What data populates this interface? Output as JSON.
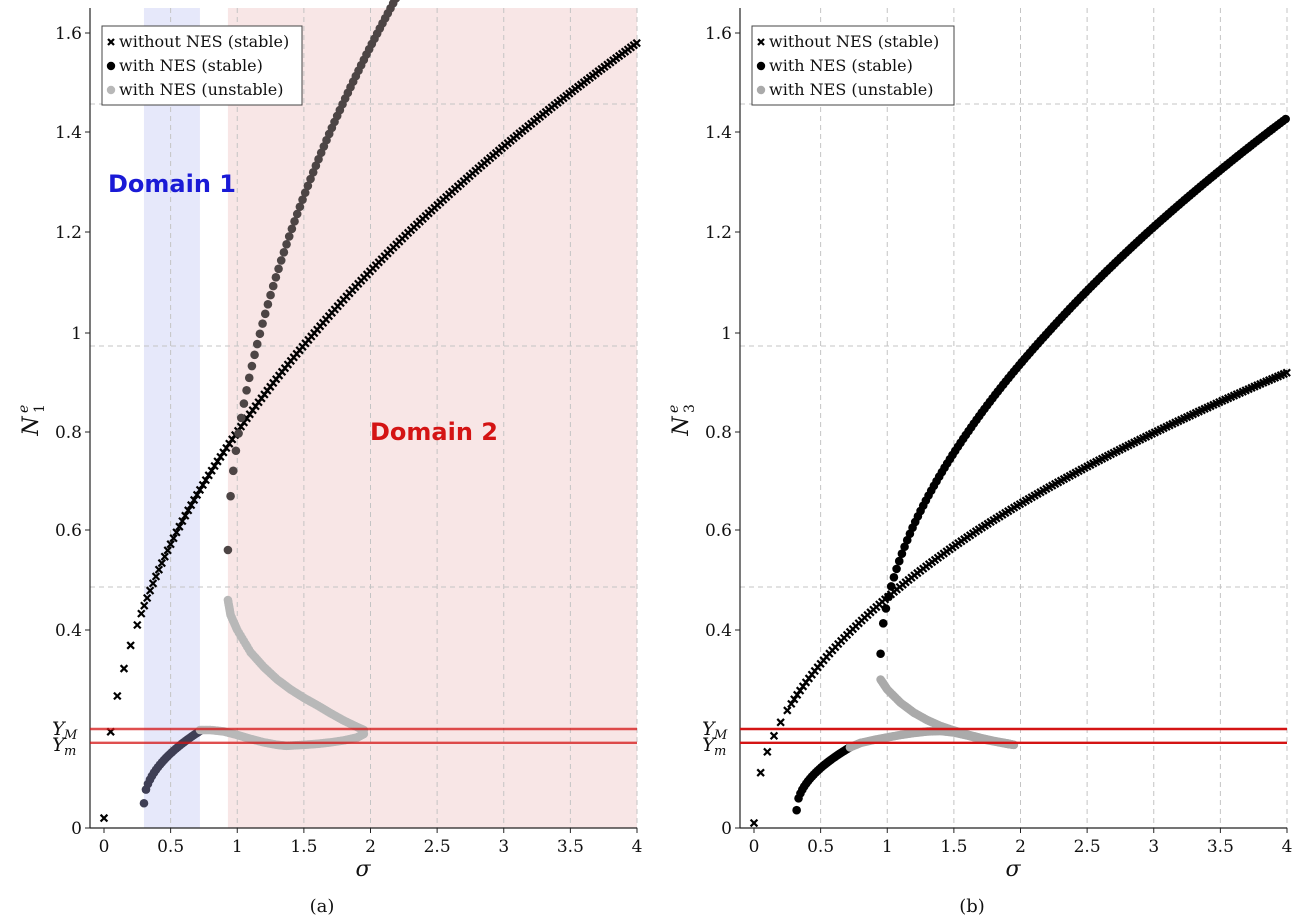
{
  "panels": [
    {
      "caption": "(a)",
      "ylabel": "N",
      "ylabel_sup": "e",
      "ylabel_sub": "1",
      "xlabel": "σ",
      "legend": [
        "without NES (stable)",
        "with NES (stable)",
        "with NES (unstable)"
      ],
      "level_labels": [
        {
          "main": "Y",
          "sub": "M"
        },
        {
          "main": "Y",
          "sub": "m"
        }
      ],
      "domains": [
        {
          "label": "Domain 1",
          "color": "#1a1ad6",
          "fill": "#e6e8fa",
          "x_range": [
            0.3,
            0.72
          ]
        },
        {
          "label": "Domain 2",
          "color": "#d41414",
          "fill": "#f8e6e6",
          "x_range": [
            0.93,
            4.0
          ]
        }
      ]
    },
    {
      "caption": "(b)",
      "ylabel": "N",
      "ylabel_sup": "e",
      "ylabel_sub": "3",
      "xlabel": "σ",
      "legend": [
        "without NES (stable)",
        "with NES (stable)",
        "with NES (unstable)"
      ],
      "level_labels": [
        {
          "main": "Y",
          "sub": "M"
        },
        {
          "main": "Y",
          "sub": "m"
        }
      ]
    }
  ],
  "chart_data": [
    {
      "type": "scatter",
      "panel": "(a)",
      "xlabel": "σ",
      "ylabel": "N_1^e",
      "xlim": [
        0,
        4
      ],
      "ylim": [
        0,
        1.65
      ],
      "xticks": [
        0,
        0.5,
        1,
        1.5,
        2,
        2.5,
        3,
        3.5,
        4
      ],
      "xtick_labels": [
        "0",
        "0.5",
        "1",
        "1.5",
        "2",
        "2.5",
        "3",
        "3.5",
        "4"
      ],
      "yticks": [
        0,
        0.4,
        0.6,
        0.8,
        1,
        1.2,
        1.4,
        1.6
      ],
      "ytick_labels": [
        "0",
        "0.4",
        "0.6",
        "0.8",
        "1",
        "1.2",
        "1.4",
        "1.6"
      ],
      "grid": true,
      "legend_position": "top-left",
      "levels": {
        "Y_M": 0.2,
        "Y_m": 0.172
      },
      "series": [
        {
          "name": "without NES (stable)",
          "marker": "x",
          "color": "#000000",
          "model": "sqrt",
          "params": {
            "a": 0.78,
            "b": 0.02
          },
          "x_range": [
            0,
            4
          ]
        },
        {
          "name": "with NES (stable)",
          "marker": "dot",
          "color": "#000000",
          "segments": [
            {
              "model": "sqrt_rise",
              "params": {
                "x0": 0.3,
                "x1": 0.72,
                "y0": 0.05,
                "y1": 0.196
              }
            },
            {
              "model": "sqrt_shift",
              "params": {
                "x0": 0.93,
                "y0": 0.56,
                "k": 0.945
              },
              "x_range": [
                0.93,
                4.0
              ]
            }
          ]
        },
        {
          "name": "with NES (unstable)",
          "marker": "dot",
          "color": "#b8b8b8",
          "segments": [
            {
              "model": "upper_branch",
              "points": [
                [
                  0.93,
                  0.46
                ],
                [
                  0.95,
                  0.43
                ],
                [
                  1.0,
                  0.4
                ],
                [
                  1.1,
                  0.355
                ],
                [
                  1.2,
                  0.325
                ],
                [
                  1.3,
                  0.3
                ],
                [
                  1.4,
                  0.28
                ],
                [
                  1.5,
                  0.263
                ],
                [
                  1.6,
                  0.248
                ],
                [
                  1.7,
                  0.232
                ],
                [
                  1.8,
                  0.217
                ],
                [
                  1.9,
                  0.204
                ],
                [
                  1.95,
                  0.198
                ]
              ]
            },
            {
              "model": "lower_branch",
              "points": [
                [
                  0.72,
                  0.198
                ],
                [
                  0.8,
                  0.198
                ],
                [
                  0.9,
                  0.195
                ],
                [
                  1.0,
                  0.188
                ],
                [
                  1.1,
                  0.18
                ],
                [
                  1.2,
                  0.173
                ],
                [
                  1.3,
                  0.168
                ],
                [
                  1.37,
                  0.166
                ],
                [
                  1.5,
                  0.168
                ],
                [
                  1.6,
                  0.17
                ],
                [
                  1.7,
                  0.173
                ],
                [
                  1.8,
                  0.177
                ],
                [
                  1.9,
                  0.183
                ],
                [
                  1.95,
                  0.19
                ]
              ]
            }
          ]
        }
      ],
      "annotations": [
        "Domain 1",
        "Domain 2"
      ]
    },
    {
      "type": "scatter",
      "panel": "(b)",
      "xlabel": "σ",
      "ylabel": "N_3^e",
      "xlim": [
        0,
        4
      ],
      "ylim": [
        0,
        1.65
      ],
      "xticks": [
        0,
        0.5,
        1,
        1.5,
        2,
        2.5,
        3,
        3.5,
        4
      ],
      "xtick_labels": [
        "0",
        "0.5",
        "1",
        "1.5",
        "2",
        "2.5",
        "3",
        "3.5",
        "4"
      ],
      "yticks": [
        0,
        0.4,
        0.6,
        0.8,
        1,
        1.2,
        1.4,
        1.6
      ],
      "ytick_labels": [
        "0",
        "0.4",
        "0.6",
        "0.8",
        "1",
        "1.2",
        "1.4",
        "1.6"
      ],
      "grid": true,
      "legend_position": "top-left",
      "levels": {
        "Y_M": 0.2,
        "Y_m": 0.172
      },
      "series": [
        {
          "name": "without NES (stable)",
          "marker": "x",
          "color": "#000000",
          "model": "sqrt",
          "params": {
            "a": 0.455,
            "b": 0.01
          },
          "x_range": [
            0,
            4
          ]
        },
        {
          "name": "with NES (stable)",
          "marker": "dot",
          "color": "#000000",
          "segments": [
            {
              "model": "sqrt_rise",
              "params": {
                "x0": 0.32,
                "x1": 0.72,
                "y0": 0.036,
                "y1": 0.163
              }
            },
            {
              "model": "sqrt_shift",
              "params": {
                "x0": 0.95,
                "y0": 0.352,
                "k": 0.57
              },
              "x_range": [
                0.95,
                4.0
              ]
            }
          ]
        },
        {
          "name": "with NES (unstable)",
          "marker": "dot",
          "color": "#aaaaaa",
          "segments": [
            {
              "model": "upper_branch",
              "points": [
                [
                  0.95,
                  0.3
                ],
                [
                  1.0,
                  0.28
                ],
                [
                  1.1,
                  0.253
                ],
                [
                  1.2,
                  0.233
                ],
                [
                  1.3,
                  0.218
                ],
                [
                  1.4,
                  0.206
                ],
                [
                  1.5,
                  0.197
                ],
                [
                  1.6,
                  0.189
                ],
                [
                  1.7,
                  0.182
                ],
                [
                  1.8,
                  0.176
                ],
                [
                  1.9,
                  0.171
                ],
                [
                  1.95,
                  0.168
                ]
              ]
            },
            {
              "model": "lower_branch",
              "points": [
                [
                  0.72,
                  0.163
                ],
                [
                  0.8,
                  0.172
                ],
                [
                  0.9,
                  0.178
                ],
                [
                  1.0,
                  0.183
                ],
                [
                  1.1,
                  0.188
                ],
                [
                  1.2,
                  0.192
                ],
                [
                  1.3,
                  0.195
                ],
                [
                  1.4,
                  0.196
                ],
                [
                  1.5,
                  0.193
                ],
                [
                  1.6,
                  0.187
                ],
                [
                  1.7,
                  0.18
                ],
                [
                  1.8,
                  0.175
                ],
                [
                  1.9,
                  0.17
                ],
                [
                  1.95,
                  0.168
                ]
              ]
            }
          ]
        }
      ]
    }
  ]
}
